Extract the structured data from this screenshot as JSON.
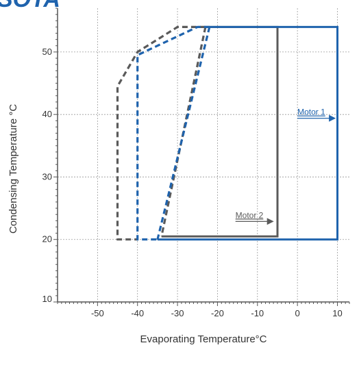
{
  "logo_text": "SOTA",
  "colors": {
    "motor1": "#1f63ad",
    "motor2": "#5a5a5a",
    "axis": "#555555",
    "grid": "#9a9a9a",
    "text": "#333333"
  },
  "chart_data": {
    "type": "line",
    "title": "",
    "xlabel": "Evaporating Temperature°C",
    "ylabel": "Condensing Temperature °C",
    "xlim": [
      -60,
      13
    ],
    "ylim": [
      10,
      57
    ],
    "xticks": [
      -50,
      -40,
      -30,
      -20,
      -10,
      0,
      10
    ],
    "yticks": [
      10,
      20,
      30,
      40,
      50
    ],
    "grid": true,
    "series": [
      {
        "name": "Motor 1",
        "solid": [
          [
            -35,
            20
          ],
          [
            10,
            20
          ],
          [
            10,
            54
          ],
          [
            -22,
            54
          ]
        ],
        "dashed": [
          [
            -22,
            54
          ],
          [
            -25,
            54
          ],
          [
            -40,
            49.5
          ],
          [
            -40,
            20
          ],
          [
            -35,
            20
          ]
        ],
        "dashed_inner": [
          [
            -22,
            54
          ],
          [
            -35,
            20
          ]
        ]
      },
      {
        "name": "Motor 2",
        "solid": [
          [
            -34,
            20.5
          ],
          [
            -5,
            20.5
          ],
          [
            -5,
            54
          ],
          [
            -23,
            54
          ]
        ],
        "dashed": [
          [
            -23,
            54
          ],
          [
            -30,
            54
          ],
          [
            -40,
            50
          ],
          [
            -45,
            44.5
          ],
          [
            -45,
            20
          ],
          [
            -40,
            20
          ]
        ],
        "dashed_inner": [
          [
            -23,
            54
          ],
          [
            -34,
            20.5
          ]
        ]
      }
    ],
    "annotations": [
      {
        "text": "Motor 1",
        "x": 0,
        "y": 39.5,
        "series": "Motor 1"
      },
      {
        "text": "Motor 2",
        "x": -15.5,
        "y": 23,
        "series": "Motor 2"
      }
    ]
  }
}
